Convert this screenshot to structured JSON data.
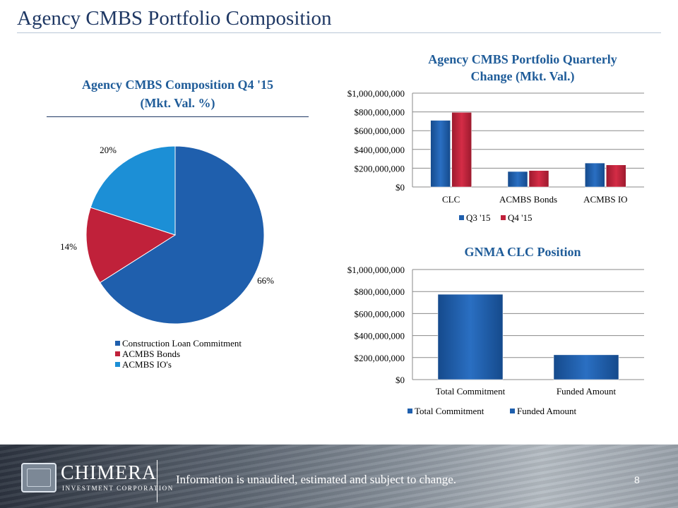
{
  "page": {
    "title": "Agency CMBS Portfolio Composition",
    "footer_note": "Information is unaudited, estimated and subject to change.",
    "page_number": "8",
    "logo_name": "CHIMERA",
    "logo_subtitle": "INVESTMENT CORPORATION"
  },
  "chart_data": [
    {
      "type": "pie",
      "title_line1": "Agency CMBS Composition Q4 '15",
      "title_line2": "(Mkt. Val. %)",
      "categories": [
        "Construction Loan Commitment",
        "ACMBS Bonds",
        "ACMBS IO's"
      ],
      "values": [
        66,
        14,
        20
      ],
      "labels": [
        "66%",
        "14%",
        "20%"
      ],
      "colors": [
        "#1f5fad",
        "#c0213a",
        "#1c8fd6"
      ],
      "legend": "bottom"
    },
    {
      "type": "bar",
      "title_line1": "Agency CMBS Portfolio Quarterly",
      "title_line2": "Change (Mkt. Val.)",
      "categories": [
        "CLC",
        "ACMBS Bonds",
        "ACMBS IO"
      ],
      "series": [
        {
          "name": "Q3 '15",
          "values": [
            710000000,
            165000000,
            255000000
          ],
          "color": "#1f5fad"
        },
        {
          "name": "Q4 '15",
          "values": [
            795000000,
            175000000,
            235000000
          ],
          "color": "#c0213a"
        }
      ],
      "ylim": [
        0,
        1000000000
      ],
      "yticks": [
        0,
        200000000,
        400000000,
        600000000,
        800000000,
        1000000000
      ],
      "ytick_labels": [
        "$0",
        "$200,000,000",
        "$400,000,000",
        "$600,000,000",
        "$800,000,000",
        "$1,000,000,000"
      ],
      "grid": true,
      "legend": "bottom"
    },
    {
      "type": "bar",
      "title_line1": "GNMA CLC Position",
      "categories": [
        "Total Commitment",
        "Funded Amount"
      ],
      "values": [
        775000000,
        225000000
      ],
      "color": "#1f5fad",
      "legend_entries": [
        "Total Commitment",
        "Funded Amount"
      ],
      "ylim": [
        0,
        1000000000
      ],
      "yticks": [
        0,
        200000000,
        400000000,
        600000000,
        800000000,
        1000000000
      ],
      "ytick_labels": [
        "$0",
        "$200,000,000",
        "$400,000,000",
        "$600,000,000",
        "$800,000,000",
        "$1,000,000,000"
      ],
      "grid": true,
      "legend": "bottom"
    }
  ]
}
